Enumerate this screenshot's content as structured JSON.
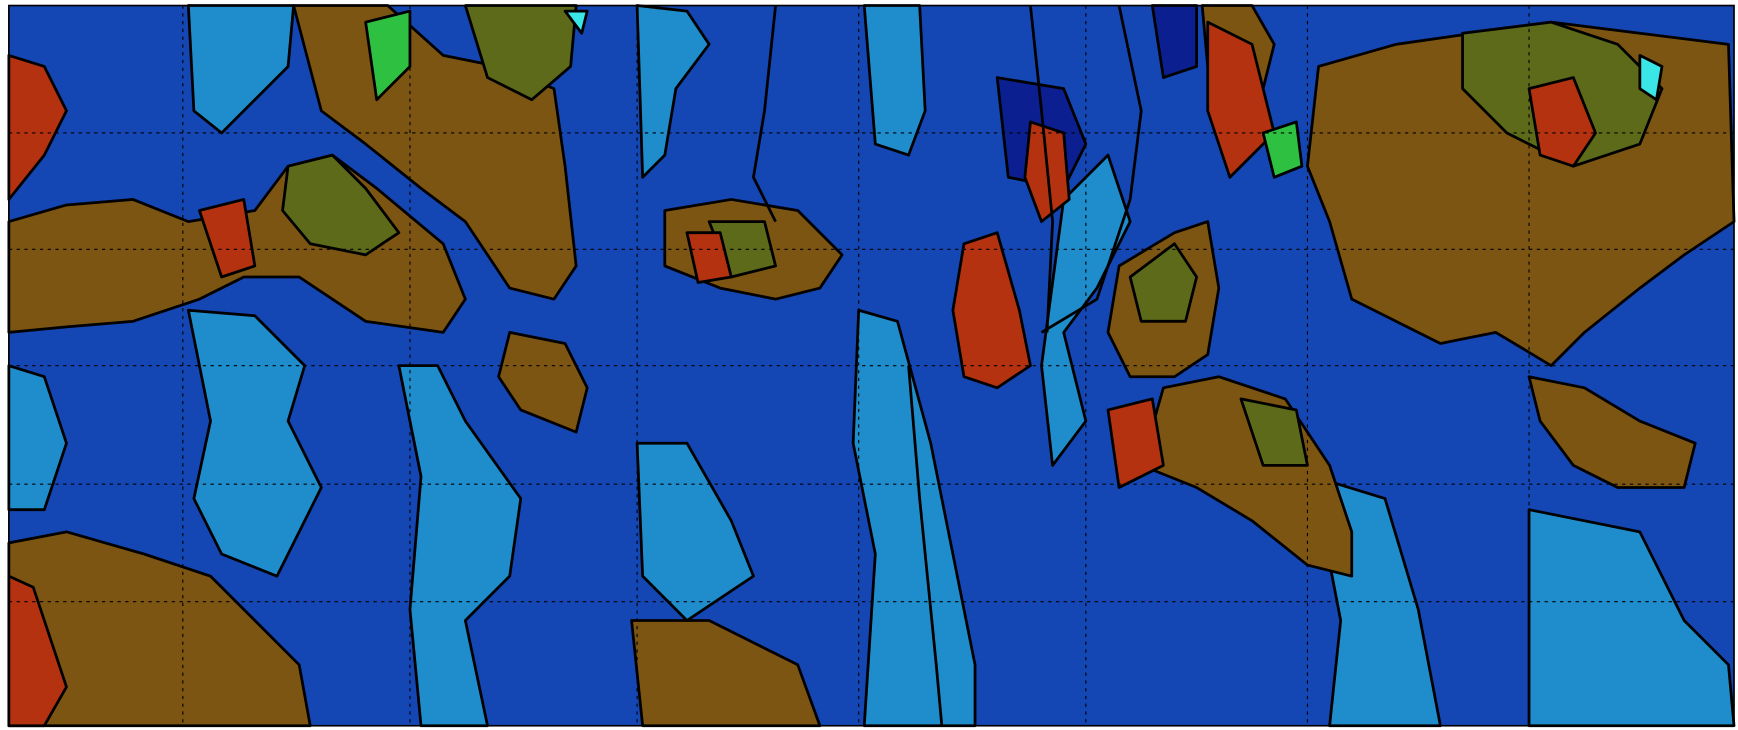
{
  "chart_data": {
    "type": "contour",
    "grid": true
  }
}
